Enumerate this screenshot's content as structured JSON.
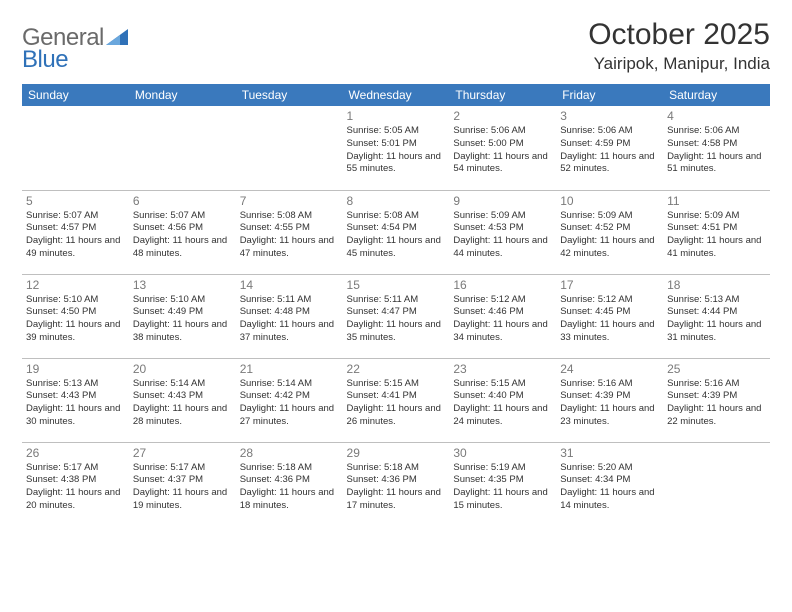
{
  "brand": {
    "text1": "General",
    "text2": "Blue"
  },
  "header": {
    "month_title": "October 2025",
    "location": "Yairipok, Manipur, India"
  },
  "colors": {
    "header_bg": "#3a79bd",
    "header_text": "#ffffff",
    "daynum": "#7a7a7a",
    "body_text": "#323232",
    "divider": "#bfbfbf",
    "accent": "#2f71b8",
    "logo_gray": "#6a6a6a"
  },
  "typography": {
    "title_fontsize": 30,
    "location_fontsize": 17,
    "dayheader_fontsize": 12,
    "daynum_fontsize": 12,
    "cell_fontsize": 9.5
  },
  "day_headers": [
    "Sunday",
    "Monday",
    "Tuesday",
    "Wednesday",
    "Thursday",
    "Friday",
    "Saturday"
  ],
  "weeks": [
    [
      {
        "day": "",
        "sunrise": "",
        "sunset": "",
        "daylight": ""
      },
      {
        "day": "",
        "sunrise": "",
        "sunset": "",
        "daylight": ""
      },
      {
        "day": "",
        "sunrise": "",
        "sunset": "",
        "daylight": ""
      },
      {
        "day": "1",
        "sunrise": "Sunrise: 5:05 AM",
        "sunset": "Sunset: 5:01 PM",
        "daylight": "Daylight: 11 hours and 55 minutes."
      },
      {
        "day": "2",
        "sunrise": "Sunrise: 5:06 AM",
        "sunset": "Sunset: 5:00 PM",
        "daylight": "Daylight: 11 hours and 54 minutes."
      },
      {
        "day": "3",
        "sunrise": "Sunrise: 5:06 AM",
        "sunset": "Sunset: 4:59 PM",
        "daylight": "Daylight: 11 hours and 52 minutes."
      },
      {
        "day": "4",
        "sunrise": "Sunrise: 5:06 AM",
        "sunset": "Sunset: 4:58 PM",
        "daylight": "Daylight: 11 hours and 51 minutes."
      }
    ],
    [
      {
        "day": "5",
        "sunrise": "Sunrise: 5:07 AM",
        "sunset": "Sunset: 4:57 PM",
        "daylight": "Daylight: 11 hours and 49 minutes."
      },
      {
        "day": "6",
        "sunrise": "Sunrise: 5:07 AM",
        "sunset": "Sunset: 4:56 PM",
        "daylight": "Daylight: 11 hours and 48 minutes."
      },
      {
        "day": "7",
        "sunrise": "Sunrise: 5:08 AM",
        "sunset": "Sunset: 4:55 PM",
        "daylight": "Daylight: 11 hours and 47 minutes."
      },
      {
        "day": "8",
        "sunrise": "Sunrise: 5:08 AM",
        "sunset": "Sunset: 4:54 PM",
        "daylight": "Daylight: 11 hours and 45 minutes."
      },
      {
        "day": "9",
        "sunrise": "Sunrise: 5:09 AM",
        "sunset": "Sunset: 4:53 PM",
        "daylight": "Daylight: 11 hours and 44 minutes."
      },
      {
        "day": "10",
        "sunrise": "Sunrise: 5:09 AM",
        "sunset": "Sunset: 4:52 PM",
        "daylight": "Daylight: 11 hours and 42 minutes."
      },
      {
        "day": "11",
        "sunrise": "Sunrise: 5:09 AM",
        "sunset": "Sunset: 4:51 PM",
        "daylight": "Daylight: 11 hours and 41 minutes."
      }
    ],
    [
      {
        "day": "12",
        "sunrise": "Sunrise: 5:10 AM",
        "sunset": "Sunset: 4:50 PM",
        "daylight": "Daylight: 11 hours and 39 minutes."
      },
      {
        "day": "13",
        "sunrise": "Sunrise: 5:10 AM",
        "sunset": "Sunset: 4:49 PM",
        "daylight": "Daylight: 11 hours and 38 minutes."
      },
      {
        "day": "14",
        "sunrise": "Sunrise: 5:11 AM",
        "sunset": "Sunset: 4:48 PM",
        "daylight": "Daylight: 11 hours and 37 minutes."
      },
      {
        "day": "15",
        "sunrise": "Sunrise: 5:11 AM",
        "sunset": "Sunset: 4:47 PM",
        "daylight": "Daylight: 11 hours and 35 minutes."
      },
      {
        "day": "16",
        "sunrise": "Sunrise: 5:12 AM",
        "sunset": "Sunset: 4:46 PM",
        "daylight": "Daylight: 11 hours and 34 minutes."
      },
      {
        "day": "17",
        "sunrise": "Sunrise: 5:12 AM",
        "sunset": "Sunset: 4:45 PM",
        "daylight": "Daylight: 11 hours and 33 minutes."
      },
      {
        "day": "18",
        "sunrise": "Sunrise: 5:13 AM",
        "sunset": "Sunset: 4:44 PM",
        "daylight": "Daylight: 11 hours and 31 minutes."
      }
    ],
    [
      {
        "day": "19",
        "sunrise": "Sunrise: 5:13 AM",
        "sunset": "Sunset: 4:43 PM",
        "daylight": "Daylight: 11 hours and 30 minutes."
      },
      {
        "day": "20",
        "sunrise": "Sunrise: 5:14 AM",
        "sunset": "Sunset: 4:43 PM",
        "daylight": "Daylight: 11 hours and 28 minutes."
      },
      {
        "day": "21",
        "sunrise": "Sunrise: 5:14 AM",
        "sunset": "Sunset: 4:42 PM",
        "daylight": "Daylight: 11 hours and 27 minutes."
      },
      {
        "day": "22",
        "sunrise": "Sunrise: 5:15 AM",
        "sunset": "Sunset: 4:41 PM",
        "daylight": "Daylight: 11 hours and 26 minutes."
      },
      {
        "day": "23",
        "sunrise": "Sunrise: 5:15 AM",
        "sunset": "Sunset: 4:40 PM",
        "daylight": "Daylight: 11 hours and 24 minutes."
      },
      {
        "day": "24",
        "sunrise": "Sunrise: 5:16 AM",
        "sunset": "Sunset: 4:39 PM",
        "daylight": "Daylight: 11 hours and 23 minutes."
      },
      {
        "day": "25",
        "sunrise": "Sunrise: 5:16 AM",
        "sunset": "Sunset: 4:39 PM",
        "daylight": "Daylight: 11 hours and 22 minutes."
      }
    ],
    [
      {
        "day": "26",
        "sunrise": "Sunrise: 5:17 AM",
        "sunset": "Sunset: 4:38 PM",
        "daylight": "Daylight: 11 hours and 20 minutes."
      },
      {
        "day": "27",
        "sunrise": "Sunrise: 5:17 AM",
        "sunset": "Sunset: 4:37 PM",
        "daylight": "Daylight: 11 hours and 19 minutes."
      },
      {
        "day": "28",
        "sunrise": "Sunrise: 5:18 AM",
        "sunset": "Sunset: 4:36 PM",
        "daylight": "Daylight: 11 hours and 18 minutes."
      },
      {
        "day": "29",
        "sunrise": "Sunrise: 5:18 AM",
        "sunset": "Sunset: 4:36 PM",
        "daylight": "Daylight: 11 hours and 17 minutes."
      },
      {
        "day": "30",
        "sunrise": "Sunrise: 5:19 AM",
        "sunset": "Sunset: 4:35 PM",
        "daylight": "Daylight: 11 hours and 15 minutes."
      },
      {
        "day": "31",
        "sunrise": "Sunrise: 5:20 AM",
        "sunset": "Sunset: 4:34 PM",
        "daylight": "Daylight: 11 hours and 14 minutes."
      },
      {
        "day": "",
        "sunrise": "",
        "sunset": "",
        "daylight": ""
      }
    ]
  ]
}
